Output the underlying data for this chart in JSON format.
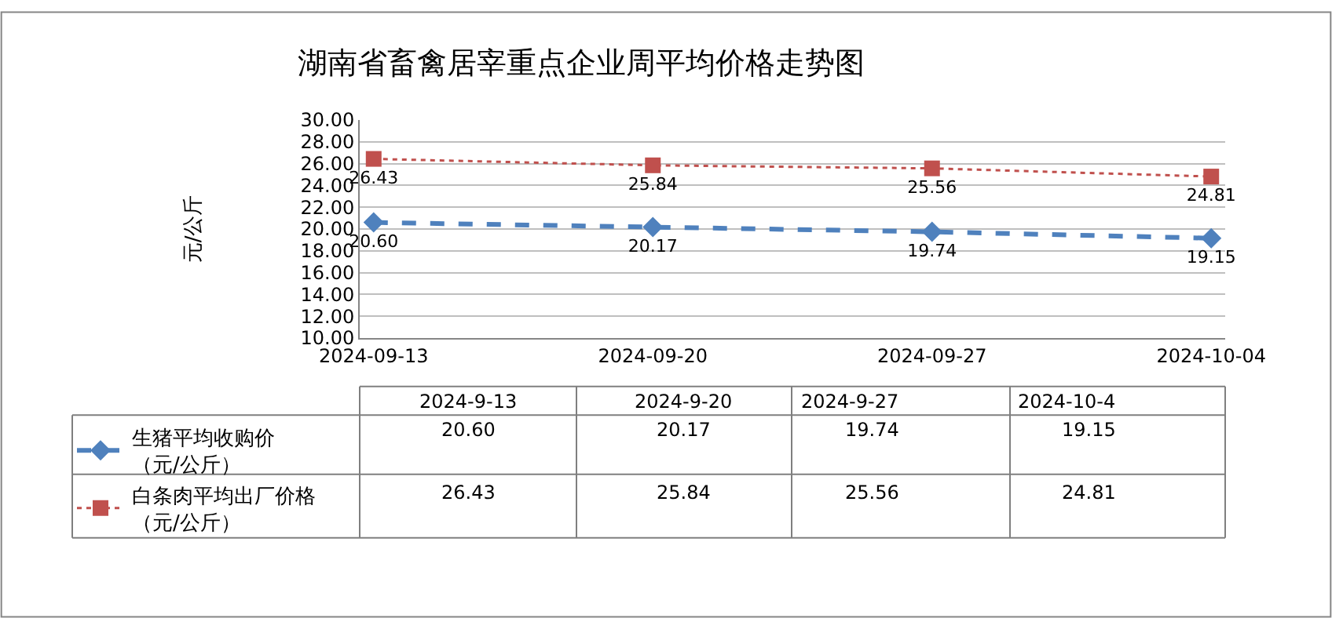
{
  "chart_data": {
    "type": "line",
    "title": "湖南省畜禽居宰重点企业周平均价格走势图",
    "ylabel": "元/公斤",
    "categories": [
      "2024-09-13",
      "2024-09-20",
      "2024-09-27",
      "2024-10-04"
    ],
    "series": [
      {
        "name": "生猪平均收购价（元/公斤）",
        "color": "#4f81bd",
        "values": [
          20.6,
          20.17,
          19.74,
          19.15
        ],
        "value_labels": [
          "20.60",
          "20.17",
          "19.74",
          "19.15"
        ],
        "marker": "diamond",
        "line_style": "dashed"
      },
      {
        "name": "白条肉平均出厂价格（元/公斤）",
        "color": "#c0504d",
        "values": [
          26.43,
          25.84,
          25.56,
          24.81
        ],
        "value_labels": [
          "26.43",
          "25.84",
          "25.56",
          "24.81"
        ],
        "marker": "square",
        "line_style": "dotted"
      }
    ],
    "annotations": [
      "2024-9-13",
      "2024-9-20",
      "2024-9-27",
      "2024-10-4"
    ],
    "ylim": [
      10,
      30
    ],
    "yticks": [
      {
        "value": 10,
        "label": "10.00"
      },
      {
        "value": 12,
        "label": "12.00"
      },
      {
        "value": 14,
        "label": "14.00"
      },
      {
        "value": 16,
        "label": "16.00"
      },
      {
        "value": 18,
        "label": "18.00"
      },
      {
        "value": 20,
        "label": "20.00"
      },
      {
        "value": 22,
        "label": "22.00"
      },
      {
        "value": 24,
        "label": "24.00"
      },
      {
        "value": 26,
        "label": "26.00"
      },
      {
        "value": 28,
        "label": "28.00"
      },
      {
        "value": 30,
        "label": "30.00"
      }
    ],
    "grid": "y",
    "legend": "bottom left"
  }
}
